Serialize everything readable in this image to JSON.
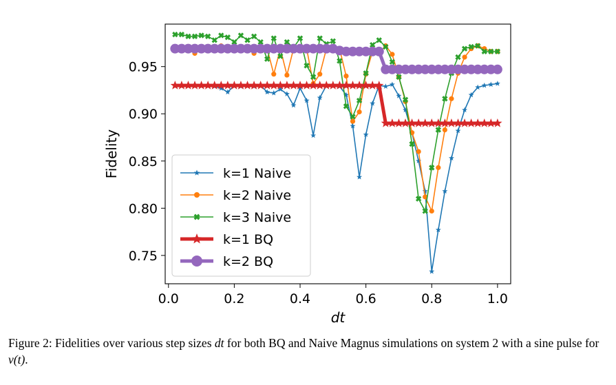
{
  "chart_data": {
    "type": "line",
    "xlabel": "dt",
    "ylabel": "Fidelity",
    "xlim": [
      -0.01,
      1.04
    ],
    "ylim": [
      0.72,
      0.995
    ],
    "xticks": [
      "0.0",
      "0.2",
      "0.4",
      "0.6",
      "0.8",
      "1.0"
    ],
    "yticks": [
      "0.75",
      "0.80",
      "0.85",
      "0.90",
      "0.95"
    ],
    "grid": false,
    "legend_position": "lower-left",
    "x": [
      0.02,
      0.04,
      0.06,
      0.08,
      0.1,
      0.12,
      0.14,
      0.16,
      0.18,
      0.2,
      0.22,
      0.24,
      0.26,
      0.28,
      0.3,
      0.32,
      0.34,
      0.36,
      0.38,
      0.4,
      0.42,
      0.44,
      0.46,
      0.48,
      0.5,
      0.52,
      0.54,
      0.56,
      0.58,
      0.6,
      0.62,
      0.64,
      0.66,
      0.68,
      0.7,
      0.72,
      0.74,
      0.76,
      0.78,
      0.8,
      0.82,
      0.84,
      0.86,
      0.88,
      0.9,
      0.92,
      0.94,
      0.96,
      0.98,
      1.0
    ],
    "series": [
      {
        "name": "k=1 Naive",
        "color": "#1f77b4",
        "marker": "star",
        "linewidth": 1.5,
        "values": [
          0.93,
          0.93,
          0.93,
          0.93,
          0.93,
          0.93,
          0.929,
          0.927,
          0.923,
          0.93,
          0.929,
          0.93,
          0.929,
          0.93,
          0.923,
          0.922,
          0.926,
          0.921,
          0.909,
          0.927,
          0.914,
          0.877,
          0.917,
          0.93,
          0.93,
          0.929,
          0.92,
          0.887,
          0.833,
          0.878,
          0.911,
          0.93,
          0.929,
          0.931,
          0.919,
          0.904,
          0.88,
          0.85,
          0.818,
          0.733,
          0.777,
          0.818,
          0.853,
          0.882,
          0.904,
          0.92,
          0.928,
          0.93,
          0.931,
          0.932
        ]
      },
      {
        "name": "k=2 Naive",
        "color": "#ff7f0e",
        "marker": "circle",
        "linewidth": 1.5,
        "values": [
          0.969,
          0.969,
          0.969,
          0.964,
          0.969,
          0.969,
          0.969,
          0.972,
          0.969,
          0.969,
          0.969,
          0.969,
          0.964,
          0.969,
          0.969,
          0.942,
          0.969,
          0.941,
          0.969,
          0.969,
          0.969,
          0.932,
          0.942,
          0.969,
          0.969,
          0.969,
          0.94,
          0.892,
          0.902,
          0.942,
          0.966,
          0.964,
          0.972,
          0.963,
          0.939,
          0.913,
          0.88,
          0.86,
          0.812,
          0.797,
          0.843,
          0.883,
          0.916,
          0.943,
          0.96,
          0.969,
          0.972,
          0.969,
          0.966,
          0.966
        ]
      },
      {
        "name": "k=3 Naive",
        "color": "#2ca02c",
        "marker": "x",
        "linewidth": 1.5,
        "values": [
          0.984,
          0.984,
          0.982,
          0.982,
          0.983,
          0.982,
          0.978,
          0.983,
          0.981,
          0.976,
          0.983,
          0.978,
          0.982,
          0.976,
          0.958,
          0.98,
          0.961,
          0.976,
          0.97,
          0.98,
          0.951,
          0.939,
          0.98,
          0.974,
          0.977,
          0.956,
          0.908,
          0.897,
          0.914,
          0.943,
          0.973,
          0.978,
          0.971,
          0.955,
          0.939,
          0.915,
          0.868,
          0.81,
          0.797,
          0.843,
          0.883,
          0.916,
          0.943,
          0.96,
          0.969,
          0.971,
          0.972,
          0.966,
          0.966,
          0.966
        ]
      },
      {
        "name": "k=1 BQ",
        "color": "#d62728",
        "marker": "star",
        "linewidth": 4.5,
        "values": [
          0.93,
          0.93,
          0.93,
          0.93,
          0.93,
          0.93,
          0.93,
          0.93,
          0.93,
          0.93,
          0.93,
          0.93,
          0.93,
          0.93,
          0.93,
          0.93,
          0.93,
          0.93,
          0.93,
          0.93,
          0.93,
          0.93,
          0.93,
          0.93,
          0.93,
          0.93,
          0.93,
          0.93,
          0.93,
          0.93,
          0.93,
          0.93,
          0.89,
          0.89,
          0.89,
          0.89,
          0.89,
          0.89,
          0.89,
          0.89,
          0.89,
          0.89,
          0.89,
          0.89,
          0.89,
          0.89,
          0.89,
          0.89,
          0.89,
          0.89
        ]
      },
      {
        "name": "k=2 BQ",
        "color": "#9467bd",
        "marker": "circle",
        "linewidth": 4.5,
        "values": [
          0.969,
          0.969,
          0.969,
          0.969,
          0.969,
          0.969,
          0.969,
          0.969,
          0.969,
          0.969,
          0.969,
          0.969,
          0.969,
          0.969,
          0.969,
          0.969,
          0.969,
          0.969,
          0.969,
          0.969,
          0.969,
          0.969,
          0.969,
          0.969,
          0.969,
          0.967,
          0.966,
          0.966,
          0.966,
          0.966,
          0.966,
          0.966,
          0.947,
          0.947,
          0.947,
          0.947,
          0.947,
          0.947,
          0.947,
          0.947,
          0.947,
          0.947,
          0.947,
          0.947,
          0.947,
          0.947,
          0.947,
          0.947,
          0.947,
          0.947
        ]
      }
    ]
  },
  "caption": {
    "label": "Figure 2: Fidelities over various step sizes ",
    "var1": "dt",
    "mid": " for both BQ and Naive Magnus simulations on system 2 with a sine pulse for ",
    "var2": "v(t)",
    "end": "."
  }
}
